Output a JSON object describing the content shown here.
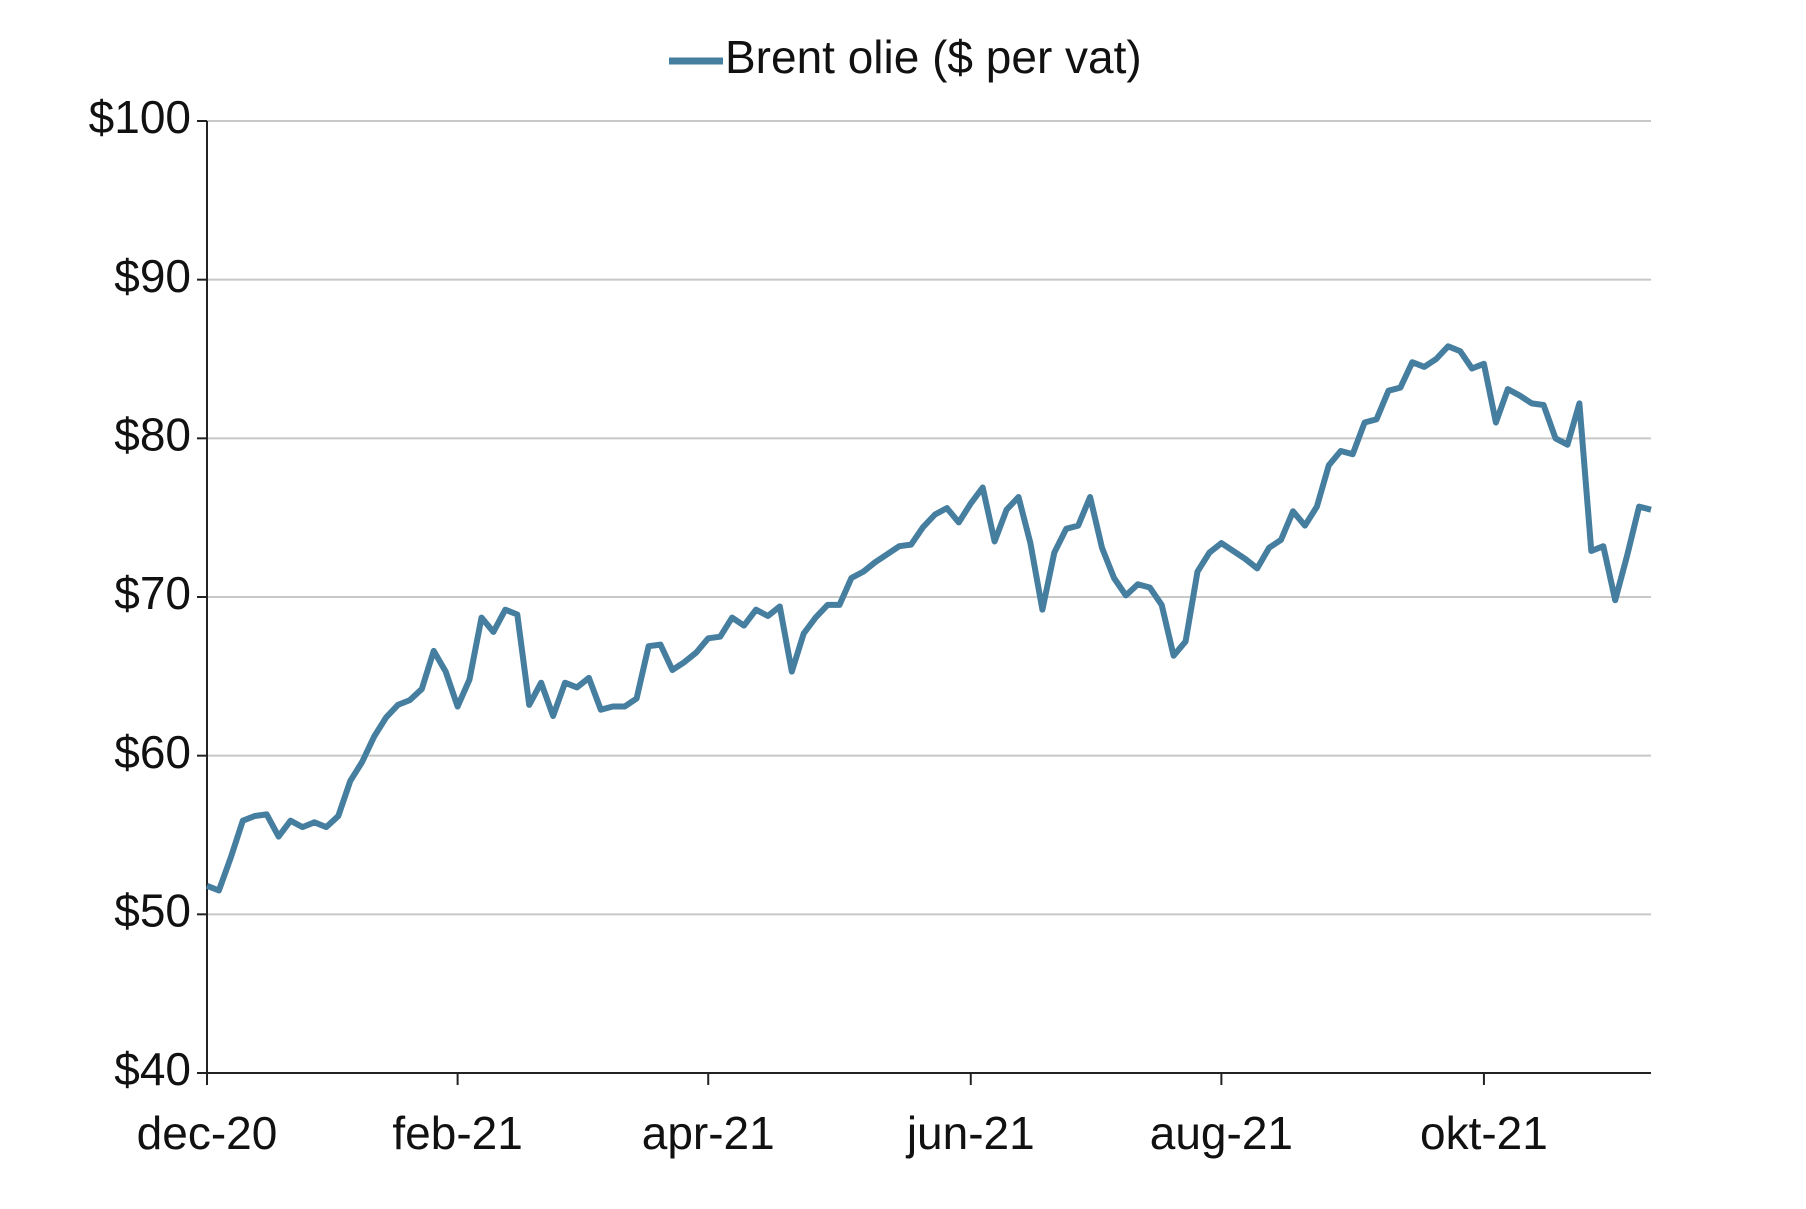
{
  "chart_data": {
    "type": "line",
    "categories": [
      "dec-20",
      null,
      null,
      null,
      null,
      null,
      null,
      null,
      null,
      null,
      null,
      null,
      null,
      null,
      null,
      null,
      null,
      null,
      null,
      null,
      null,
      "feb-21",
      null,
      null,
      null,
      null,
      null,
      null,
      null,
      null,
      null,
      null,
      null,
      null,
      null,
      null,
      null,
      null,
      null,
      null,
      null,
      null,
      "apr-21",
      null,
      null,
      null,
      null,
      null,
      null,
      null,
      null,
      null,
      null,
      null,
      null,
      null,
      null,
      null,
      null,
      null,
      null,
      null,
      null,
      null,
      "jun-21",
      null,
      null,
      null,
      null,
      null,
      null,
      null,
      null,
      null,
      null,
      null,
      null,
      null,
      null,
      null,
      null,
      null,
      null,
      null,
      null,
      "aug-21",
      null,
      null,
      null,
      null,
      null,
      null,
      null,
      null,
      null,
      null,
      null,
      null,
      null,
      null,
      null,
      null,
      null,
      null,
      null,
      null,
      null,
      "okt-21",
      null,
      null,
      null,
      null,
      null,
      null,
      null,
      null,
      null,
      null,
      null,
      null,
      null,
      null
    ],
    "series": [
      {
        "name": "Brent olie ($ per vat)",
        "color": "#467ea0",
        "values": [
          51.8,
          51.5,
          53.6,
          55.9,
          56.2,
          56.3,
          54.9,
          55.9,
          55.5,
          55.8,
          55.5,
          56.2,
          58.4,
          59.6,
          61.2,
          62.4,
          63.2,
          63.5,
          64.2,
          66.6,
          65.3,
          63.1,
          64.8,
          68.7,
          67.8,
          69.2,
          68.9,
          63.2,
          64.6,
          62.5,
          64.6,
          64.3,
          64.9,
          62.9,
          63.1,
          63.1,
          63.6,
          66.9,
          67,
          65.4,
          65.9,
          66.5,
          67.4,
          67.5,
          68.7,
          68.2,
          69.2,
          68.8,
          69.4,
          65.3,
          67.7,
          68.7,
          69.5,
          69.5,
          71.2,
          71.6,
          72.2,
          72.7,
          73.2,
          73.3,
          74.4,
          75.2,
          75.6,
          74.7,
          75.9,
          76.9,
          73.5,
          75.5,
          76.3,
          73.4,
          69.2,
          72.8,
          74.3,
          74.5,
          76.3,
          73.1,
          71.2,
          70.1,
          70.8,
          70.6,
          69.5,
          66.3,
          67.2,
          71.6,
          72.8,
          73.4,
          72.9,
          72.4,
          71.8,
          73.1,
          73.6,
          75.4,
          74.5,
          75.7,
          78.3,
          79.2,
          79,
          81,
          81.2,
          83,
          83.2,
          84.8,
          84.5,
          85,
          85.8,
          85.5,
          84.4,
          84.7,
          81,
          83.1,
          82.7,
          82.2,
          82.1,
          80,
          79.6,
          82.2,
          72.9,
          73.2,
          69.8,
          72.6,
          75.7,
          75.5
        ]
      }
    ],
    "ylim": [
      40,
      100
    ],
    "yticks": [
      {
        "value": 40,
        "label": "$40"
      },
      {
        "value": 50,
        "label": "$50"
      },
      {
        "value": 60,
        "label": "$60"
      },
      {
        "value": 70,
        "label": "$70"
      },
      {
        "value": 80,
        "label": "$80"
      },
      {
        "value": 90,
        "label": "$90"
      },
      {
        "value": 100,
        "label": "$100"
      }
    ],
    "grid": true,
    "legend": "top"
  }
}
